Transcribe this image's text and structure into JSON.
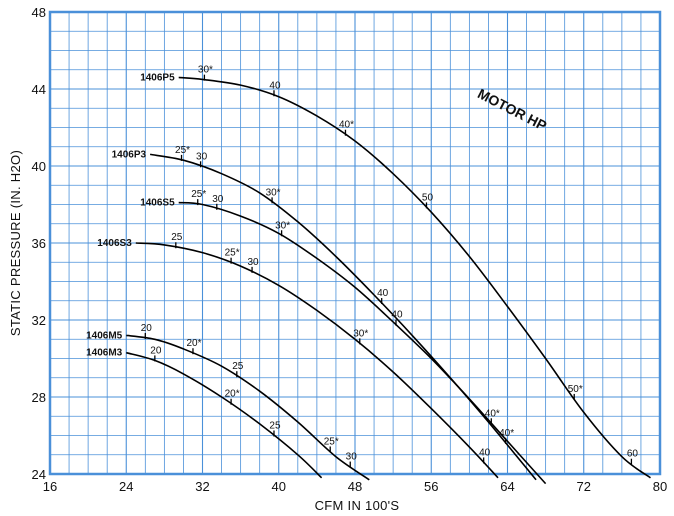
{
  "chart_data": {
    "type": "line",
    "title": "",
    "xlabel": "CFM  IN  100'S",
    "ylabel": "STATIC  PRESSURE  (IN.  H2O)",
    "xlim": [
      16,
      80
    ],
    "ylim": [
      24,
      48
    ],
    "x_ticks": [
      16,
      24,
      32,
      40,
      48,
      56,
      64,
      72,
      80
    ],
    "y_ticks": [
      24,
      28,
      32,
      36,
      40,
      44,
      48
    ],
    "grid": true,
    "grid_color": "#4a90d9",
    "frame_color": "#4a90d9",
    "curve_color": "#000000",
    "annotation": "MOTOR HP",
    "series": [
      {
        "name": "1406P5",
        "points": [
          [
            29.5,
            44.6
          ],
          [
            32,
            44.5
          ],
          [
            36,
            44.2
          ],
          [
            40,
            43.6
          ],
          [
            44,
            42.6
          ],
          [
            48,
            41.3
          ],
          [
            52,
            39.6
          ],
          [
            56,
            37.6
          ],
          [
            60,
            35.3
          ],
          [
            64,
            32.7
          ],
          [
            68,
            30.0
          ],
          [
            72,
            27.2
          ],
          [
            76,
            24.9
          ],
          [
            79,
            23.8
          ]
        ],
        "hp_marks": [
          {
            "x": 32.2,
            "label": "30*"
          },
          {
            "x": 39.5,
            "label": "40"
          },
          {
            "x": 47,
            "label": "40*"
          },
          {
            "x": 55.5,
            "label": "50"
          },
          {
            "x": 71,
            "label": "50*"
          },
          {
            "x": 77,
            "label": "60"
          }
        ]
      },
      {
        "name": "1406P3",
        "points": [
          [
            26.5,
            40.6
          ],
          [
            30,
            40.3
          ],
          [
            34,
            39.6
          ],
          [
            38,
            38.6
          ],
          [
            42,
            37.1
          ],
          [
            46,
            35.3
          ],
          [
            50,
            33.3
          ],
          [
            54,
            31.2
          ],
          [
            58,
            29.0
          ],
          [
            62,
            26.7
          ],
          [
            66,
            24.3
          ],
          [
            67,
            23.7
          ]
        ],
        "hp_marks": [
          {
            "x": 29.8,
            "label": "25*"
          },
          {
            "x": 31.8,
            "label": "30"
          },
          {
            "x": 39.3,
            "label": "30*"
          },
          {
            "x": 50.8,
            "label": "40"
          },
          {
            "x": 63.8,
            "label": "40*"
          }
        ]
      },
      {
        "name": "1406S5",
        "points": [
          [
            29.5,
            38.1
          ],
          [
            32,
            38.0
          ],
          [
            36,
            37.4
          ],
          [
            40,
            36.5
          ],
          [
            44,
            35.2
          ],
          [
            48,
            33.7
          ],
          [
            52,
            31.9
          ],
          [
            56,
            30.0
          ],
          [
            60,
            27.9
          ],
          [
            64,
            25.7
          ],
          [
            68,
            23.5
          ]
        ],
        "hp_marks": [
          {
            "x": 31.5,
            "label": "25*"
          },
          {
            "x": 33.5,
            "label": "30"
          },
          {
            "x": 40.3,
            "label": "30*"
          },
          {
            "x": 52.3,
            "label": "40"
          },
          {
            "x": 62.3,
            "label": "40*"
          }
        ]
      },
      {
        "name": "1406S3",
        "points": [
          [
            25,
            36.0
          ],
          [
            28,
            35.9
          ],
          [
            32,
            35.5
          ],
          [
            36,
            34.8
          ],
          [
            40,
            33.8
          ],
          [
            44,
            32.5
          ],
          [
            48,
            31.0
          ],
          [
            52,
            29.3
          ],
          [
            56,
            27.4
          ],
          [
            60,
            25.4
          ],
          [
            63,
            23.8
          ]
        ],
        "hp_marks": [
          {
            "x": 29.2,
            "label": "25"
          },
          {
            "x": 35,
            "label": "25*"
          },
          {
            "x": 37.2,
            "label": "30"
          },
          {
            "x": 48.5,
            "label": "30*"
          },
          {
            "x": 61.5,
            "label": "40"
          }
        ]
      },
      {
        "name": "1406M5",
        "points": [
          [
            24,
            31.2
          ],
          [
            27,
            31.0
          ],
          [
            30,
            30.5
          ],
          [
            34,
            29.6
          ],
          [
            38,
            28.3
          ],
          [
            42,
            26.7
          ],
          [
            46,
            24.9
          ],
          [
            49.5,
            23.7
          ]
        ],
        "hp_marks": [
          {
            "x": 26,
            "label": "20"
          },
          {
            "x": 31,
            "label": "20*"
          },
          {
            "x": 35.6,
            "label": "25"
          },
          {
            "x": 45.4,
            "label": "25*"
          },
          {
            "x": 47.5,
            "label": "30"
          }
        ]
      },
      {
        "name": "1406M3",
        "points": [
          [
            24,
            30.3
          ],
          [
            27,
            29.9
          ],
          [
            30,
            29.2
          ],
          [
            34,
            28.0
          ],
          [
            38,
            26.6
          ],
          [
            42,
            25.0
          ],
          [
            44.5,
            23.8
          ]
        ],
        "hp_marks": [
          {
            "x": 27,
            "label": "20"
          },
          {
            "x": 35,
            "label": "20*"
          },
          {
            "x": 39.5,
            "label": "25"
          }
        ]
      }
    ]
  }
}
